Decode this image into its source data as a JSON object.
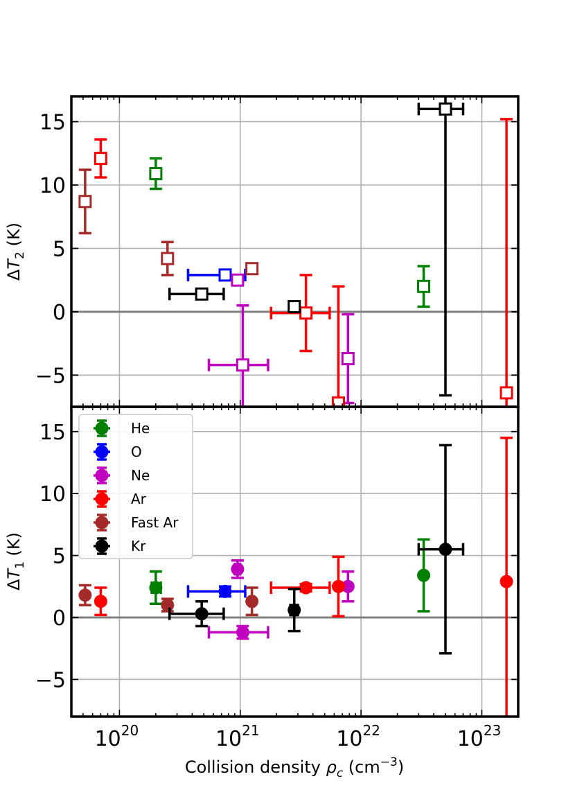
{
  "chart_data": [
    {
      "type": "scatter",
      "panel": "top",
      "ylabel": "ΔT₂ (K)",
      "ylim": [
        -7.5,
        17
      ],
      "xlim": [
        4e+19,
        2e+23
      ],
      "xscale": "log",
      "grid": true,
      "marker": "open-square",
      "yticks": [
        "−5",
        "0",
        "5",
        "10",
        "15"
      ],
      "series": [
        {
          "name": "He",
          "color": "#008000",
          "points": [
            {
              "x": 2e+20,
              "y": 10.9,
              "yerr": 1.2,
              "xlo": 1.85e+20,
              "xhi": 2.2e+20
            },
            {
              "x": 3.3e+22,
              "y": 2.0,
              "yerr": 1.6,
              "xlo": 3.3e+22,
              "xhi": 3.3e+22
            }
          ]
        },
        {
          "name": "O",
          "color": "#0000ff",
          "points": [
            {
              "x": 7.5e+20,
              "y": 2.9,
              "yerr": 0.1,
              "xlo": 3.7e+20,
              "xhi": 1.1e+21
            }
          ]
        },
        {
          "name": "Ne",
          "color": "#bf00bf",
          "points": [
            {
              "x": 9.5e+20,
              "y": 2.5,
              "yerr": 0.2,
              "xlo": 9e+20,
              "xhi": 1e+21
            },
            {
              "x": 1.05e+21,
              "y": -4.2,
              "yerr": 4.7,
              "xlo": 5.5e+20,
              "xhi": 1.7e+21
            },
            {
              "x": 7.8e+21,
              "y": -3.7,
              "yerr": 3.5,
              "xlo": 7.8e+21,
              "xhi": 7.8e+21
            }
          ]
        },
        {
          "name": "Ar",
          "color": "#ff0000",
          "points": [
            {
              "x": 7e+19,
              "y": 12.1,
              "yerr": 1.5,
              "xlo": 7e+19,
              "xhi": 7e+19
            },
            {
              "x": 3.5e+21,
              "y": -0.1,
              "yerr": 3.0,
              "xlo": 1.8e+21,
              "xhi": 5.5e+21
            },
            {
              "x": 6.5e+21,
              "y": -7.2,
              "yerr": 9.2,
              "xlo": 6.5e+21,
              "xhi": 6.5e+21
            },
            {
              "x": 1.6e+23,
              "y": -6.4,
              "yerr": 21.6,
              "xlo": 1.6e+23,
              "xhi": 1.6e+23
            }
          ]
        },
        {
          "name": "Fast Ar",
          "color": "#a52a2a",
          "points": [
            {
              "x": 5.2e+19,
              "y": 8.7,
              "yerr": 2.5,
              "xlo": 5.2e+19,
              "xhi": 5.2e+19
            },
            {
              "x": 2.5e+20,
              "y": 4.2,
              "yerr": 1.3,
              "xlo": 2.5e+20,
              "xhi": 2.5e+20
            },
            {
              "x": 1.25e+21,
              "y": 3.4,
              "yerr": 0.3,
              "xlo": 1.2e+21,
              "xhi": 1.3e+21
            }
          ]
        },
        {
          "name": "Kr",
          "color": "#000000",
          "points": [
            {
              "x": 4.8e+20,
              "y": 1.4,
              "yerr": 0.4,
              "xlo": 2.6e+20,
              "xhi": 7.3e+20
            },
            {
              "x": 2.8e+21,
              "y": 0.4,
              "yerr": 0.3,
              "xlo": 2.6e+21,
              "xhi": 3e+21
            },
            {
              "x": 5e+22,
              "y": 16.0,
              "yerr": 22.6,
              "xlo": 3e+22,
              "xhi": 7e+22
            }
          ]
        }
      ]
    },
    {
      "type": "scatter",
      "panel": "bottom",
      "ylabel": "ΔT₁ (K)",
      "xlabel": "Collision density ρc (cm⁻³)",
      "ylim": [
        -8,
        17
      ],
      "xlim": [
        4e+19,
        2e+23
      ],
      "xscale": "log",
      "grid": true,
      "marker": "filled-circle",
      "legend_position": "upper-left",
      "yticks": [
        "−5",
        "0",
        "5",
        "10",
        "15"
      ],
      "xticks": [
        {
          "base": "10",
          "exp": "20",
          "value": 1e+20
        },
        {
          "base": "10",
          "exp": "21",
          "value": 1e+21
        },
        {
          "base": "10",
          "exp": "22",
          "value": 1e+22
        },
        {
          "base": "10",
          "exp": "23",
          "value": 1e+23
        }
      ],
      "series": [
        {
          "name": "He",
          "color": "#008000",
          "points": [
            {
              "x": 2e+20,
              "y": 2.4,
              "yerr": 1.3,
              "xlo": 1.85e+20,
              "xhi": 2.2e+20
            },
            {
              "x": 3.3e+22,
              "y": 3.4,
              "yerr": 2.9,
              "xlo": 3.3e+22,
              "xhi": 3.3e+22
            }
          ]
        },
        {
          "name": "O",
          "color": "#0000ff",
          "points": [
            {
              "x": 7.5e+20,
              "y": 2.1,
              "yerr": 0.4,
              "xlo": 3.7e+20,
              "xhi": 1.1e+21
            }
          ]
        },
        {
          "name": "Ne",
          "color": "#bf00bf",
          "points": [
            {
              "x": 9.5e+20,
              "y": 3.9,
              "yerr": 0.7,
              "xlo": 9e+20,
              "xhi": 1e+21
            },
            {
              "x": 1.05e+21,
              "y": -1.2,
              "yerr": 0.5,
              "xlo": 5.5e+20,
              "xhi": 1.7e+21
            },
            {
              "x": 7.8e+21,
              "y": 2.5,
              "yerr": 1.2,
              "xlo": 7.8e+21,
              "xhi": 7.8e+21
            }
          ]
        },
        {
          "name": "Ar",
          "color": "#ff0000",
          "points": [
            {
              "x": 7e+19,
              "y": 1.3,
              "yerr": 1.1,
              "xlo": 7e+19,
              "xhi": 7e+19
            },
            {
              "x": 3.5e+21,
              "y": 2.4,
              "yerr": 0.3,
              "xlo": 1.8e+21,
              "xhi": 5.5e+21
            },
            {
              "x": 6.5e+21,
              "y": 2.5,
              "yerr": 2.4,
              "xlo": 6.5e+21,
              "xhi": 6.5e+21
            },
            {
              "x": 1.6e+23,
              "y": 2.9,
              "yerr": 11.6,
              "xlo": 1.6e+23,
              "xhi": 1.6e+23
            }
          ]
        },
        {
          "name": "Fast Ar",
          "color": "#a52a2a",
          "points": [
            {
              "x": 5.2e+19,
              "y": 1.8,
              "yerr": 0.8,
              "xlo": 5.2e+19,
              "xhi": 5.2e+19
            },
            {
              "x": 2.5e+20,
              "y": 1.0,
              "yerr": 0.5,
              "xlo": 2.5e+20,
              "xhi": 2.5e+20
            },
            {
              "x": 1.25e+21,
              "y": 1.3,
              "yerr": 1.1,
              "xlo": 1.2e+21,
              "xhi": 1.3e+21
            }
          ]
        },
        {
          "name": "Kr",
          "color": "#000000",
          "points": [
            {
              "x": 4.8e+20,
              "y": 0.3,
              "yerr": 1.0,
              "xlo": 2.6e+20,
              "xhi": 7.3e+20
            },
            {
              "x": 2.8e+21,
              "y": 0.6,
              "yerr": 1.7,
              "xlo": 2.6e+21,
              "xhi": 3e+21
            },
            {
              "x": 5e+22,
              "y": 5.5,
              "yerr": 8.4,
              "xlo": 3e+22,
              "xhi": 7e+22
            }
          ]
        }
      ]
    }
  ]
}
